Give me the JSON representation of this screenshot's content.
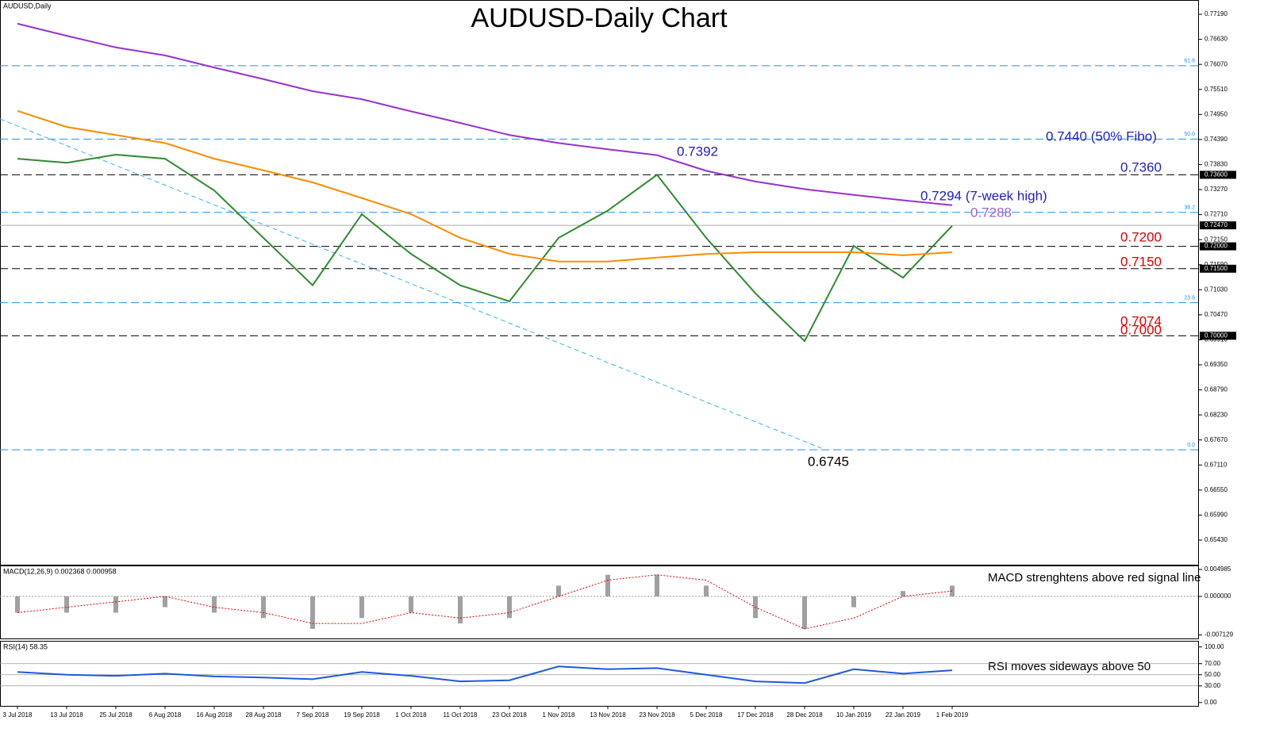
{
  "chart_data": [
    {
      "type": "line",
      "title": "AUDUSD-Daily Chart",
      "subtitle": "AUDUSD,Daily",
      "categories": [
        "3 Jul 2018",
        "13 Jul 2018",
        "25 Jul 2018",
        "6 Aug 2018",
        "16 Aug 2018",
        "28 Aug 2018",
        "7 Sep 2018",
        "19 Sep 2018",
        "1 Oct 2018",
        "11 Oct 2018",
        "23 Oct 2018",
        "1 Nov 2018",
        "13 Nov 2018",
        "23 Nov 2018",
        "5 Dec 2018",
        "17 Dec 2018",
        "28 Dec 2018",
        "10 Jan 2019",
        "22 Jan 2019",
        "1 Feb 2019"
      ],
      "series": [
        {
          "color": "#2e8b2e",
          "values": [
            0.7396,
            0.7387,
            0.7405,
            0.7396,
            0.7325,
            0.7219,
            0.7113,
            0.7272,
            0.7183,
            0.7113,
            0.7077,
            0.7219,
            0.728,
            0.736,
            0.7219,
            0.7095,
            0.6988,
            0.7201,
            0.713,
            0.7246
          ]
        },
        {
          "color": "#9932cc",
          "values": [
            0.7698,
            0.7671,
            0.7645,
            0.7627,
            0.76,
            0.7574,
            0.7547,
            0.7529,
            0.7502,
            0.7476,
            0.7449,
            0.7431,
            0.7417,
            0.7404,
            0.7369,
            0.7345,
            0.7328,
            0.7315,
            0.7303,
            0.7292
          ]
        },
        {
          "color": "#ff8c00",
          "values": [
            0.7503,
            0.7467,
            0.7449,
            0.7431,
            0.7396,
            0.737,
            0.7343,
            0.7308,
            0.7272,
            0.7219,
            0.7183,
            0.7166,
            0.7166,
            0.7175,
            0.7183,
            0.7187,
            0.7187,
            0.7187,
            0.718,
            0.7187
          ]
        }
      ],
      "ylim": [
        0.6488,
        0.7751
      ],
      "yticks": [
        {
          "value": 0.7719,
          "label": "0.77190"
        },
        {
          "value": 0.7663,
          "label": "0.76630"
        },
        {
          "value": 0.7607,
          "label": "0.76070"
        },
        {
          "value": 0.7551,
          "label": "0.75510"
        },
        {
          "value": 0.7495,
          "label": "0.74950"
        },
        {
          "value": 0.7439,
          "label": "0.74390"
        },
        {
          "value": 0.7383,
          "label": "0.73830"
        },
        {
          "value": 0.7327,
          "label": "0.73270"
        },
        {
          "value": 0.7271,
          "label": "0.72710"
        },
        {
          "value": 0.7215,
          "label": "0.72150"
        },
        {
          "value": 0.7159,
          "label": "0.71590"
        },
        {
          "value": 0.7103,
          "label": "0.71030"
        },
        {
          "value": 0.7047,
          "label": "0.70470"
        },
        {
          "value": 0.6991,
          "label": "0.69910"
        },
        {
          "value": 0.6935,
          "label": "0.69350"
        },
        {
          "value": 0.6879,
          "label": "0.68790"
        },
        {
          "value": 0.6823,
          "label": "0.68230"
        },
        {
          "value": 0.6767,
          "label": "0.67670"
        },
        {
          "value": 0.6711,
          "label": "0.67110"
        },
        {
          "value": 0.6655,
          "label": "0.66550"
        },
        {
          "value": 0.6599,
          "label": "0.65990"
        },
        {
          "value": 0.6543,
          "label": "0.65430"
        }
      ],
      "price_labels": [
        {
          "value": 0.736,
          "label": "0.73600"
        },
        {
          "value": 0.7247,
          "label": "0.72470"
        },
        {
          "value": 0.72,
          "label": "0.72000"
        },
        {
          "value": 0.715,
          "label": "0.71500"
        },
        {
          "value": 0.7,
          "label": "0.70000"
        }
      ],
      "fib_levels": [
        {
          "value": 0.7604,
          "label": "61.8"
        },
        {
          "value": 0.744,
          "label": "50.0"
        },
        {
          "value": 0.7276,
          "label": "38.2"
        },
        {
          "value": 0.7074,
          "label": "23.6"
        },
        {
          "value": 0.6745,
          "label": "0.0"
        }
      ],
      "fib_color": "#1e90ff",
      "levels": [
        0.736,
        0.72,
        0.715,
        0.7
      ],
      "annotations": [
        {
          "text": "0.7392",
          "color": "#2020c8"
        },
        {
          "text": "0.7440 (50% Fibo)",
          "color": "#2020c8"
        },
        {
          "text": "0.7360",
          "color": "#2020c8"
        },
        {
          "text": "0.7294 (7-week high)",
          "color": "#2020c8"
        },
        {
          "text": "0.7288",
          "color": "#9966cc"
        },
        {
          "text": "0.7200",
          "color": "#e00000"
        },
        {
          "text": "0.7150",
          "color": "#e00000"
        },
        {
          "text": "0.7074",
          "color": "#e00000"
        },
        {
          "text": "0.7000",
          "color": "#e00000"
        },
        {
          "text": "0.6745",
          "color": "#000000"
        }
      ]
    },
    {
      "type": "macd",
      "title": "MACD(12,26,9) 0.002368 0.000958",
      "annotation": "MACD strenghtens above red signal line",
      "series": [
        {
          "color": "#a0a0a0",
          "values": [
            -0.003,
            -0.003,
            -0.003,
            -0.002,
            -0.003,
            -0.004,
            -0.006,
            -0.004,
            -0.003,
            -0.005,
            -0.004,
            0.002,
            0.004,
            0.004,
            0.002,
            -0.004,
            -0.006,
            -0.002,
            0.001,
            0.002
          ]
        },
        {
          "color": "#e00000",
          "values": [
            -0.003,
            -0.002,
            -0.001,
            0,
            -0.002,
            -0.003,
            -0.005,
            -0.005,
            -0.003,
            -0.004,
            -0.003,
            0,
            0.003,
            0.004,
            0.003,
            -0.002,
            -0.006,
            -0.004,
            0,
            0.001
          ]
        }
      ],
      "ylim": [
        -0.00777,
        0.00572
      ],
      "yticks": [
        {
          "value": 0.004985,
          "label": "0.004985"
        },
        {
          "value": 0,
          "label": "0.000000"
        },
        {
          "value": -0.007129,
          "label": "-0.007129"
        }
      ]
    },
    {
      "type": "line",
      "title": "RSI(14) 58.35",
      "annotation": "RSI moves sideways above 50",
      "series": [
        {
          "color": "#1e5adc",
          "values": [
            55,
            50,
            48,
            52,
            47,
            45,
            42,
            55,
            48,
            38,
            40,
            65,
            60,
            62,
            50,
            38,
            35,
            60,
            52,
            58
          ]
        }
      ],
      "ylim": [
        -6,
        111
      ],
      "yticks": [
        {
          "value": 100,
          "label": "100.00"
        },
        {
          "value": 70,
          "label": "70.00"
        },
        {
          "value": 50,
          "label": "50.00"
        },
        {
          "value": 30,
          "label": "30.00"
        },
        {
          "value": 0,
          "label": "0.00"
        }
      ],
      "levels": [
        70,
        50,
        30
      ]
    }
  ]
}
